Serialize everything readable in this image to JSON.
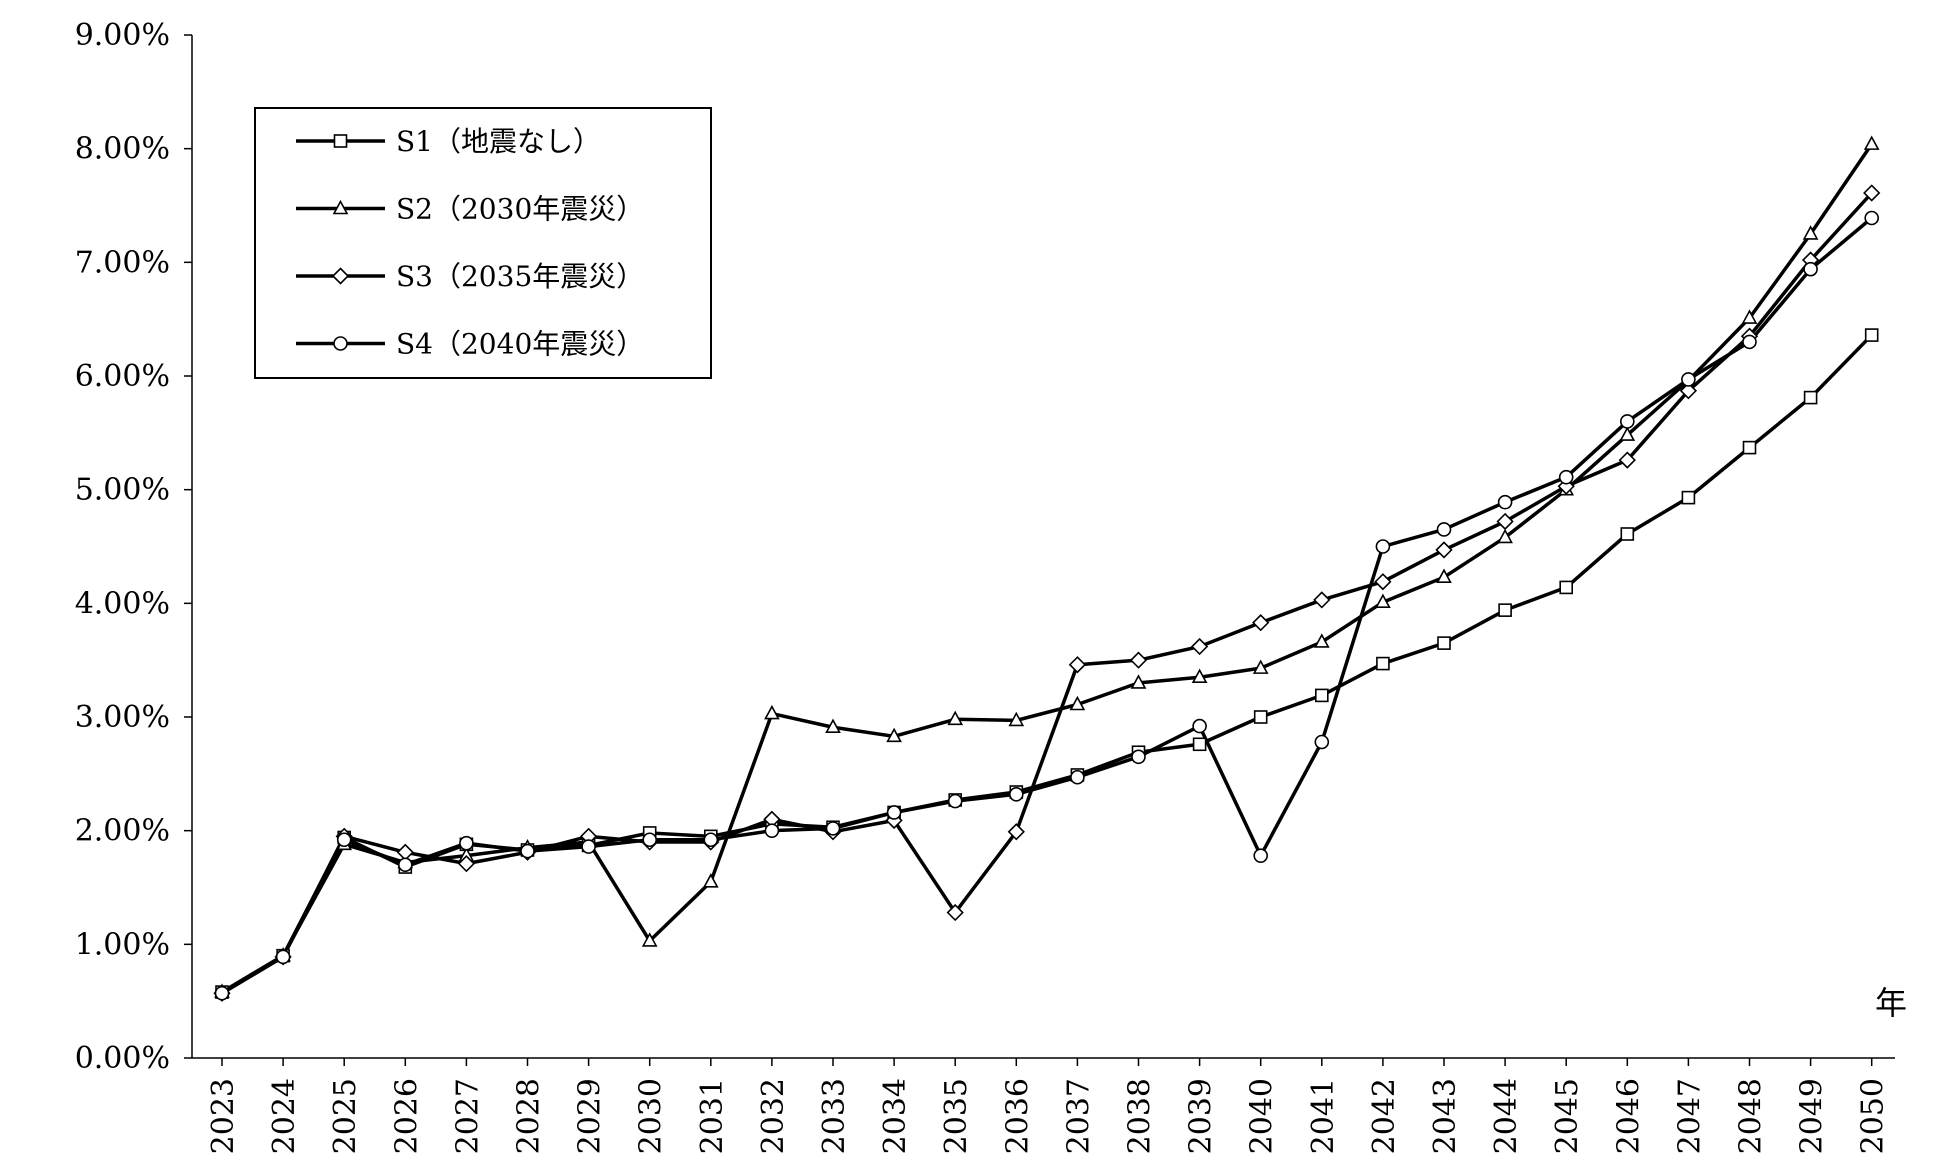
{
  "chart_data": {
    "type": "line",
    "title": "",
    "xlabel": "年",
    "ylabel": "",
    "ylim": [
      0,
      0.09
    ],
    "y_ticks": [
      "0.00%",
      "1.00%",
      "2.00%",
      "3.00%",
      "4.00%",
      "5.00%",
      "6.00%",
      "7.00%",
      "8.00%",
      "9.00%"
    ],
    "grid": false,
    "legend_position": "top-left",
    "categories": [
      "2023",
      "2024",
      "2025",
      "2026",
      "2027",
      "2028",
      "2029",
      "2030",
      "2031",
      "2032",
      "2033",
      "2034",
      "2035",
      "2036",
      "2037",
      "2038",
      "2039",
      "2040",
      "2041",
      "2042",
      "2043",
      "2044",
      "2045",
      "2046",
      "2047",
      "2048",
      "2049",
      "2050"
    ],
    "series": [
      {
        "name": "S1（地震なし）",
        "marker": "square",
        "values": [
          0.0058,
          0.009,
          0.0194,
          0.0168,
          0.0188,
          0.0183,
          0.0187,
          0.0198,
          0.0195,
          0.0206,
          0.0203,
          0.0216,
          0.0227,
          0.0234,
          0.0249,
          0.0269,
          0.0276,
          0.03,
          0.0319,
          0.0347,
          0.0365,
          0.0394,
          0.0414,
          0.0461,
          0.0493,
          0.0537,
          0.0581,
          0.0636
        ]
      },
      {
        "name": "S2（2030年震災）",
        "marker": "triangle",
        "values": [
          0.0058,
          0.009,
          0.0188,
          0.0172,
          0.0178,
          0.0185,
          0.019,
          0.0103,
          0.0155,
          0.0303,
          0.0291,
          0.0283,
          0.0298,
          0.0297,
          0.0311,
          0.033,
          0.0335,
          0.0343,
          0.0366,
          0.0401,
          0.0423,
          0.0458,
          0.05,
          0.0548,
          0.0596,
          0.0651,
          0.0725,
          0.0804
        ]
      },
      {
        "name": "S3（2035年震災）",
        "marker": "diamond",
        "values": [
          0.0057,
          0.0089,
          0.0195,
          0.0181,
          0.0171,
          0.0181,
          0.0195,
          0.019,
          0.019,
          0.021,
          0.0199,
          0.0209,
          0.0128,
          0.0199,
          0.0346,
          0.035,
          0.0362,
          0.0383,
          0.0403,
          0.0419,
          0.0447,
          0.0472,
          0.0503,
          0.0526,
          0.0587,
          0.0635,
          0.0702,
          0.0761
        ]
      },
      {
        "name": "S4（2040年震災）",
        "marker": "circle",
        "values": [
          0.0057,
          0.0089,
          0.0192,
          0.017,
          0.0189,
          0.0182,
          0.0186,
          0.0192,
          0.0192,
          0.02,
          0.0202,
          0.0216,
          0.0226,
          0.0232,
          0.0247,
          0.0265,
          0.0292,
          0.0178,
          0.0278,
          0.045,
          0.0465,
          0.0489,
          0.0511,
          0.056,
          0.0597,
          0.063,
          0.0694,
          0.0739
        ]
      }
    ]
  }
}
